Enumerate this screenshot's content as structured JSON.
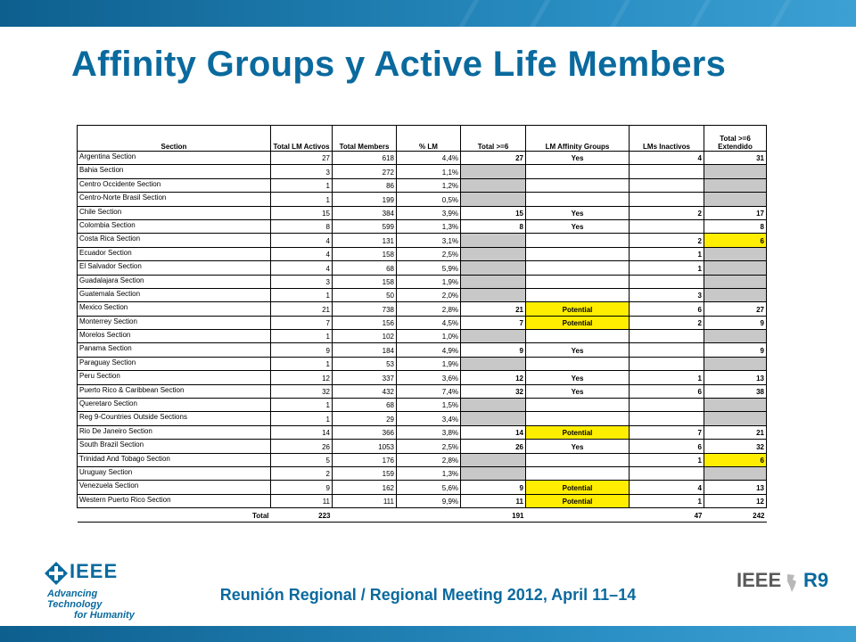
{
  "slide": {
    "title": "Affinity Groups y Active Life Members",
    "footer": "Reunión Regional / Regional Meeting 2012, April 11–14",
    "logo_left": {
      "word": "IEEE",
      "tagline_line1": "Advancing Technology",
      "tagline_line2": "for Humanity"
    },
    "logo_right": {
      "word": "IEEE",
      "suffix": "R9"
    },
    "colors": {
      "brand_blue": "#0a6a9e",
      "cell_gray": "#c8c8c8",
      "cell_yellow": "#ffee00"
    }
  },
  "table": {
    "headers": [
      "Section",
      "Total LM Activos",
      "Total Members",
      "% LM",
      "Total >=6",
      "LM Affinity Groups",
      "LMs Inactivos",
      "Total >=6 Extendido"
    ],
    "rows": [
      [
        "Argentina Section",
        "27",
        "618",
        "4,4%",
        "27",
        "Yes",
        "4",
        "31"
      ],
      [
        "Bahia Section",
        "3",
        "272",
        "1,1%",
        "",
        "",
        "",
        ""
      ],
      [
        "Centro Occidente Section",
        "1",
        "86",
        "1,2%",
        "",
        "",
        "",
        ""
      ],
      [
        "Centro-Norte Brasil Section",
        "1",
        "199",
        "0,5%",
        "",
        "",
        "",
        ""
      ],
      [
        "Chile Section",
        "15",
        "384",
        "3,9%",
        "15",
        "Yes",
        "2",
        "17"
      ],
      [
        "Colombia Section",
        "8",
        "599",
        "1,3%",
        "8",
        "Yes",
        "",
        "8"
      ],
      [
        "Costa Rica Section",
        "4",
        "131",
        "3,1%",
        "",
        "",
        "2",
        "6"
      ],
      [
        "Ecuador Section",
        "4",
        "158",
        "2,5%",
        "",
        "",
        "1",
        ""
      ],
      [
        "El Salvador Section",
        "4",
        "68",
        "5,9%",
        "",
        "",
        "1",
        ""
      ],
      [
        "Guadalajara Section",
        "3",
        "158",
        "1,9%",
        "",
        "",
        "",
        ""
      ],
      [
        "Guatemala Section",
        "1",
        "50",
        "2,0%",
        "",
        "",
        "3",
        ""
      ],
      [
        "Mexico Section",
        "21",
        "738",
        "2,8%",
        "21",
        "Potential",
        "6",
        "27"
      ],
      [
        "Monterrey Section",
        "7",
        "156",
        "4,5%",
        "7",
        "Potential",
        "2",
        "9"
      ],
      [
        "Morelos Section",
        "1",
        "102",
        "1,0%",
        "",
        "",
        "",
        ""
      ],
      [
        "Panama Section",
        "9",
        "184",
        "4,9%",
        "9",
        "Yes",
        "",
        "9"
      ],
      [
        "Paraguay Section",
        "1",
        "53",
        "1,9%",
        "",
        "",
        "",
        ""
      ],
      [
        "Peru Section",
        "12",
        "337",
        "3,6%",
        "12",
        "Yes",
        "1",
        "13"
      ],
      [
        "Puerto Rico & Caribbean Section",
        "32",
        "432",
        "7,4%",
        "32",
        "Yes",
        "6",
        "38"
      ],
      [
        "Queretaro Section",
        "1",
        "68",
        "1,5%",
        "",
        "",
        "",
        ""
      ],
      [
        "Reg 9-Countries Outside Sections",
        "1",
        "29",
        "3,4%",
        "",
        "",
        "",
        ""
      ],
      [
        "Rio De Janeiro Section",
        "14",
        "366",
        "3,8%",
        "14",
        "Potential",
        "7",
        "21"
      ],
      [
        "South Brazil Section",
        "26",
        "1053",
        "2,5%",
        "26",
        "Yes",
        "6",
        "32"
      ],
      [
        "Trinidad And Tobago Section",
        "5",
        "176",
        "2,8%",
        "",
        "",
        "1",
        "6"
      ],
      [
        "Uruguay Section",
        "2",
        "159",
        "1,3%",
        "",
        "",
        "",
        ""
      ],
      [
        "Venezuela Section",
        "9",
        "162",
        "5,6%",
        "9",
        "Potential",
        "4",
        "13"
      ],
      [
        "Western Puerto Rico Section",
        "11",
        "111",
        "9,9%",
        "11",
        "Potential",
        "1",
        "12"
      ]
    ],
    "shading": [
      [
        0,
        0,
        0,
        0,
        0,
        0,
        0,
        0
      ],
      [
        0,
        0,
        0,
        0,
        1,
        0,
        0,
        1
      ],
      [
        0,
        0,
        0,
        0,
        1,
        0,
        0,
        1
      ],
      [
        0,
        0,
        0,
        0,
        1,
        0,
        0,
        1
      ],
      [
        0,
        0,
        0,
        0,
        0,
        0,
        0,
        0
      ],
      [
        0,
        0,
        0,
        0,
        0,
        0,
        0,
        0
      ],
      [
        0,
        0,
        0,
        0,
        1,
        0,
        0,
        2
      ],
      [
        0,
        0,
        0,
        0,
        1,
        0,
        0,
        1
      ],
      [
        0,
        0,
        0,
        0,
        1,
        0,
        0,
        1
      ],
      [
        0,
        0,
        0,
        0,
        1,
        0,
        0,
        1
      ],
      [
        0,
        0,
        0,
        0,
        1,
        0,
        0,
        1
      ],
      [
        0,
        0,
        0,
        0,
        0,
        2,
        0,
        0
      ],
      [
        0,
        0,
        0,
        0,
        0,
        2,
        0,
        0
      ],
      [
        0,
        0,
        0,
        0,
        1,
        0,
        0,
        1
      ],
      [
        0,
        0,
        0,
        0,
        0,
        0,
        0,
        0
      ],
      [
        0,
        0,
        0,
        0,
        1,
        0,
        0,
        1
      ],
      [
        0,
        0,
        0,
        0,
        0,
        0,
        0,
        0
      ],
      [
        0,
        0,
        0,
        0,
        0,
        0,
        0,
        0
      ],
      [
        0,
        0,
        0,
        0,
        1,
        0,
        0,
        1
      ],
      [
        0,
        0,
        0,
        0,
        1,
        0,
        0,
        1
      ],
      [
        0,
        0,
        0,
        0,
        0,
        2,
        0,
        0
      ],
      [
        0,
        0,
        0,
        0,
        0,
        0,
        0,
        0
      ],
      [
        0,
        0,
        0,
        0,
        1,
        0,
        0,
        2
      ],
      [
        0,
        0,
        0,
        0,
        1,
        0,
        0,
        1
      ],
      [
        0,
        0,
        0,
        0,
        0,
        2,
        0,
        0
      ],
      [
        0,
        0,
        0,
        0,
        0,
        2,
        0,
        0
      ]
    ],
    "total": [
      "Total",
      "223",
      "",
      "",
      "191",
      "",
      "47",
      "242"
    ]
  }
}
